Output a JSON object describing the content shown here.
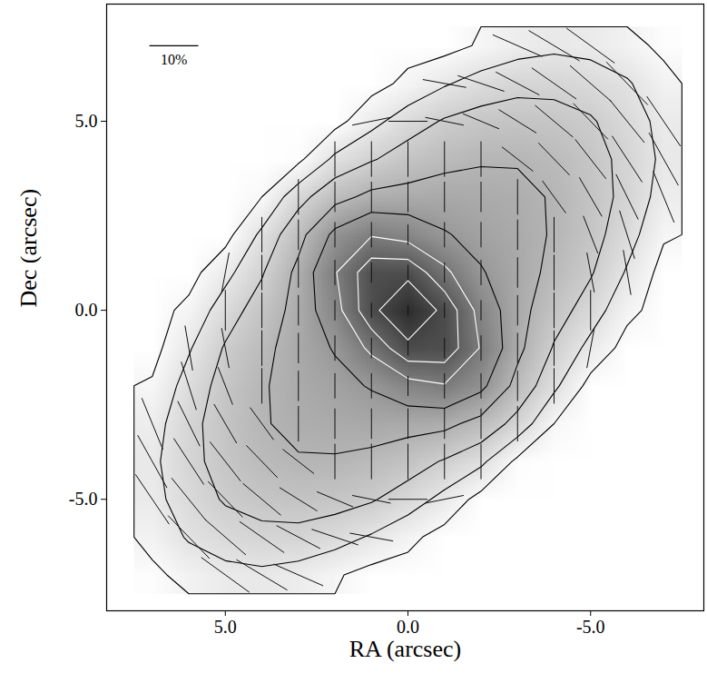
{
  "chart_data": {
    "type": "vector",
    "xlabel": "RA (arcsec)",
    "ylabel": "Dec (arcsec)",
    "xlim": [
      8.25,
      -8.1
    ],
    "ylim": [
      -7.95,
      8.1
    ],
    "xticks": [
      {
        "value": 5,
        "label": "5.0"
      },
      {
        "value": 0,
        "label": "0.0"
      },
      {
        "value": -5,
        "label": "-5.0"
      }
    ],
    "yticks": [
      {
        "value": 5,
        "label": "5.0"
      },
      {
        "value": 0,
        "label": "0.0"
      },
      {
        "value": -5,
        "label": "-5.0"
      }
    ],
    "intensity": {
      "ra": [
        7,
        6,
        5,
        4,
        3,
        2,
        1,
        0,
        -1,
        -2,
        -3,
        -4,
        -5,
        -6,
        -7
      ],
      "dec": [
        7,
        6,
        5,
        4,
        3,
        2,
        1,
        0,
        -1,
        -2,
        -3,
        -4,
        -5,
        -6,
        -7
      ],
      "values": [
        [
          0,
          0,
          0,
          0,
          0,
          0,
          0,
          0,
          0,
          4,
          8,
          10,
          9,
          6,
          1
        ],
        [
          0,
          0,
          0,
          0,
          0,
          0,
          0,
          5,
          11,
          16,
          19,
          19,
          17,
          13,
          6
        ],
        [
          0,
          0,
          0,
          0,
          0,
          0,
          9,
          17,
          23,
          26,
          27,
          26,
          23,
          17,
          9
        ],
        [
          0,
          0,
          0,
          0,
          1,
          14,
          21,
          27,
          31,
          33,
          33,
          31,
          26,
          19,
          10
        ],
        [
          0,
          0,
          0,
          3,
          18,
          30,
          37,
          38,
          39,
          38,
          37,
          33,
          27,
          19,
          8
        ],
        [
          0,
          0,
          0,
          14,
          30,
          49,
          59,
          55,
          47,
          42,
          38,
          33,
          26,
          16,
          4
        ],
        [
          0,
          0,
          9,
          21,
          37,
          59,
          80,
          81,
          63,
          47,
          39,
          31,
          23,
          11,
          0
        ],
        [
          0,
          5,
          17,
          27,
          38,
          55,
          81,
          95,
          81,
          55,
          38,
          27,
          17,
          5,
          0
        ],
        [
          0,
          11,
          23,
          31,
          39,
          47,
          63,
          81,
          80,
          59,
          37,
          21,
          9,
          0,
          0
        ],
        [
          4,
          16,
          26,
          33,
          38,
          42,
          47,
          55,
          59,
          49,
          30,
          14,
          0,
          0,
          0
        ],
        [
          8,
          19,
          27,
          33,
          37,
          38,
          39,
          38,
          37,
          30,
          18,
          3,
          0,
          0,
          0
        ],
        [
          10,
          19,
          26,
          31,
          33,
          33,
          31,
          27,
          21,
          14,
          1,
          0,
          0,
          0,
          0
        ],
        [
          9,
          17,
          23,
          26,
          27,
          26,
          23,
          17,
          9,
          0,
          0,
          0,
          0,
          0,
          0
        ],
        [
          6,
          13,
          17,
          19,
          19,
          16,
          11,
          5,
          0,
          0,
          0,
          0,
          0,
          0,
          0
        ],
        [
          1,
          6,
          9,
          10,
          8,
          4,
          0,
          0,
          0,
          0,
          0,
          0,
          0,
          0,
          0
        ]
      ]
    },
    "contours": [
      {
        "levels": [
          3,
          12,
          22,
          34,
          46
        ],
        "color": "#000000"
      },
      {
        "levels": [
          60,
          72,
          84
        ],
        "color": "#ffffff"
      }
    ],
    "vectors": [
      {
        "dec": 7,
        "ra": [
          -3,
          -4,
          -5
        ],
        "p": [
          11,
          12,
          12
        ],
        "pa": [
          67,
          60,
          55
        ]
      },
      {
        "dec": 6,
        "ra": [
          -1,
          -2,
          -3,
          -4,
          -5,
          -6
        ],
        "p": [
          9,
          10,
          10,
          11,
          11,
          12
        ],
        "pa": [
          80,
          72,
          63,
          56,
          50,
          45
        ]
      },
      {
        "dec": 5,
        "ra": [
          1,
          0,
          -1,
          -2,
          -3,
          -4,
          -5,
          -6,
          -7
        ],
        "p": [
          8,
          8,
          8,
          8,
          9,
          10,
          10,
          11,
          12
        ],
        "pa": [
          101,
          90,
          79,
          68,
          59,
          51,
          45,
          40,
          35
        ]
      },
      {
        "dec": 4,
        "ra": [
          2,
          1,
          0,
          -1,
          -2,
          -3,
          -4,
          -5,
          -6,
          -7
        ],
        "p": [
          7,
          7,
          7,
          7,
          7,
          8,
          9,
          10,
          11,
          12
        ],
        "pa": [
          0,
          0,
          0,
          0,
          0,
          53,
          45,
          39,
          34,
          30
        ]
      },
      {
        "dec": 3,
        "ra": [
          3,
          2,
          1,
          0,
          -1,
          -2,
          -3,
          -4,
          -5,
          -6,
          -7
        ],
        "p": [
          7,
          6,
          6,
          6,
          6,
          6,
          7,
          8,
          9,
          10,
          11
        ],
        "pa": [
          0,
          0,
          0,
          0,
          0,
          0,
          0,
          37,
          31,
          27,
          23
        ]
      },
      {
        "dec": 2,
        "ra": [
          4,
          3,
          2,
          1,
          0,
          -1,
          -2,
          -3,
          -4,
          -5,
          -6
        ],
        "p": [
          7,
          6,
          5,
          5,
          4,
          5,
          5,
          6,
          7,
          8,
          10
        ],
        "pa": [
          0,
          0,
          0,
          0,
          0,
          0,
          0,
          0,
          0,
          22,
          18
        ]
      },
      {
        "dec": 1,
        "ra": [
          5,
          4,
          3,
          2,
          1,
          0,
          -1,
          -2,
          -3,
          -4,
          -5,
          -6
        ],
        "p": [
          8,
          7,
          6,
          5,
          4,
          3,
          4,
          5,
          6,
          7,
          8,
          9
        ],
        "pa": [
          169,
          0,
          0,
          0,
          0,
          0,
          0,
          0,
          0,
          0,
          11,
          10
        ]
      },
      {
        "dec": 0,
        "ra": [
          5,
          4,
          3,
          2,
          1,
          0,
          -1,
          -2,
          -3,
          -4,
          -5
        ],
        "p": [
          8,
          7,
          6,
          4,
          3,
          2,
          3,
          4,
          6,
          7,
          8
        ],
        "pa": [
          0,
          0,
          0,
          0,
          0,
          0,
          0,
          0,
          0,
          0,
          0
        ]
      },
      {
        "dec": -1,
        "ra": [
          6,
          5,
          4,
          3,
          2,
          1,
          0,
          -1,
          -2,
          -3,
          -4,
          -5
        ],
        "p": [
          9,
          8,
          7,
          6,
          5,
          4,
          3,
          4,
          5,
          6,
          7,
          8
        ],
        "pa": [
          10,
          11,
          0,
          0,
          0,
          0,
          0,
          0,
          0,
          0,
          0,
          169
        ]
      },
      {
        "dec": -2,
        "ra": [
          6,
          5,
          4,
          3,
          2,
          1,
          0,
          -1,
          -2,
          -3,
          -4
        ],
        "p": [
          10,
          8,
          7,
          6,
          5,
          5,
          4,
          5,
          5,
          6,
          7
        ],
        "pa": [
          18,
          22,
          0,
          0,
          0,
          0,
          0,
          0,
          0,
          0,
          0
        ]
      },
      {
        "dec": -3,
        "ra": [
          7,
          6,
          5,
          4,
          3,
          2,
          1,
          0,
          -1,
          -2,
          -3
        ],
        "p": [
          11,
          10,
          9,
          8,
          7,
          6,
          6,
          6,
          6,
          6,
          7
        ],
        "pa": [
          23,
          27,
          31,
          37,
          0,
          0,
          0,
          0,
          0,
          0,
          0
        ]
      },
      {
        "dec": -4,
        "ra": [
          7,
          6,
          5,
          4,
          3,
          2,
          1,
          0,
          -1,
          -2
        ],
        "p": [
          12,
          11,
          10,
          9,
          8,
          7,
          7,
          7,
          7,
          7
        ],
        "pa": [
          30,
          34,
          39,
          45,
          53,
          0,
          0,
          0,
          0,
          0
        ]
      },
      {
        "dec": -5,
        "ra": [
          7,
          6,
          5,
          4,
          3,
          2,
          1,
          0,
          -1
        ],
        "p": [
          12,
          11,
          10,
          10,
          9,
          8,
          8,
          8,
          8
        ],
        "pa": [
          35,
          40,
          45,
          51,
          59,
          68,
          79,
          90,
          101
        ]
      },
      {
        "dec": -6,
        "ra": [
          6,
          5,
          4,
          3,
          2,
          1
        ],
        "p": [
          12,
          11,
          11,
          10,
          10,
          9
        ],
        "pa": [
          45,
          50,
          56,
          63,
          72,
          80
        ]
      },
      {
        "dec": -7,
        "ra": [
          5,
          4,
          3
        ],
        "p": [
          12,
          12,
          11
        ],
        "pa": [
          55,
          60,
          67
        ]
      }
    ],
    "scale_bar": {
      "p": 10,
      "label": "10%"
    }
  }
}
